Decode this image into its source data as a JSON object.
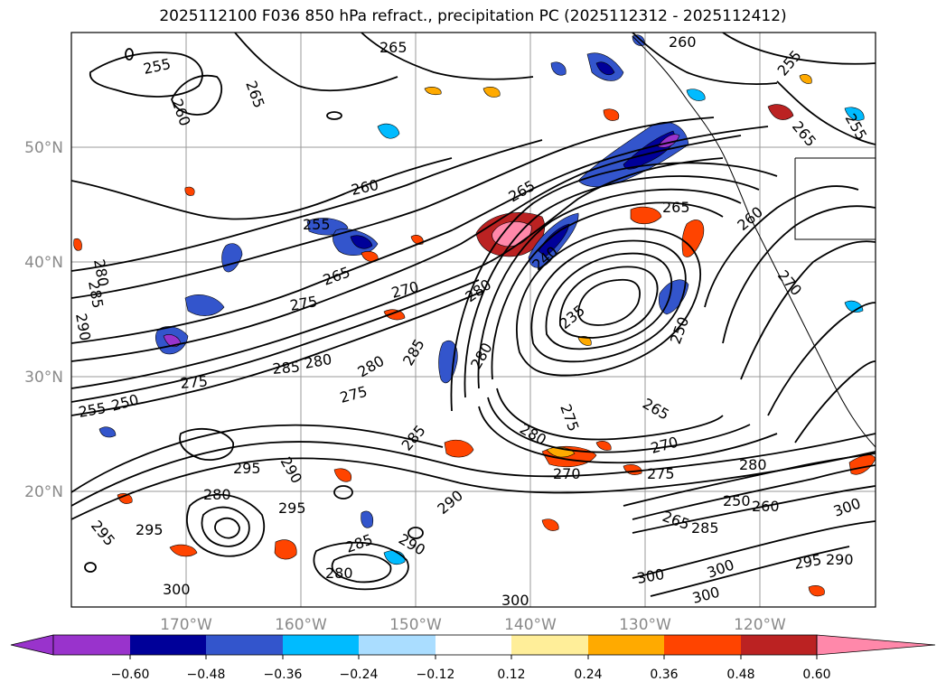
{
  "title": "2025112100 F036 850 hPa refract., precipitation PC (2025112312 - 2025112412)",
  "map": {
    "lat_labels": [
      "50°N",
      "40°N",
      "30°N",
      "20°N"
    ],
    "lon_labels": [
      "170°W",
      "160°W",
      "150°W",
      "140°W",
      "130°W",
      "120°W"
    ],
    "lat_values": [
      50,
      40,
      30,
      20
    ],
    "lon_values": [
      -170,
      -160,
      -150,
      -140,
      -130,
      -120
    ],
    "lat_range": [
      10,
      60
    ],
    "lon_range": [
      -180,
      -110
    ],
    "projection": "cylindrical",
    "contour_color": "#000000",
    "contour_labels": [
      "255",
      "265",
      "260",
      "255",
      "265",
      "260",
      "255",
      "265",
      "260",
      "260",
      "265",
      "255",
      "265",
      "280",
      "285",
      "290",
      "270",
      "275",
      "280",
      "265",
      "240",
      "235",
      "250",
      "275",
      "270",
      "280",
      "285",
      "280",
      "275",
      "275",
      "255",
      "250",
      "265",
      "270",
      "275",
      "280",
      "290",
      "285",
      "295",
      "300",
      "295",
      "300",
      "285",
      "280",
      "300",
      "290",
      "260",
      "250",
      "265",
      "270",
      "280",
      "300",
      "295",
      "290",
      "300",
      "280",
      "285",
      "295",
      "290",
      "295",
      "300",
      "285",
      "280"
    ]
  },
  "colorbar": {
    "ticks": [
      "−0.60",
      "−0.48",
      "−0.36",
      "−0.24",
      "−0.12",
      "0.12",
      "0.24",
      "0.36",
      "0.48",
      "0.60"
    ],
    "colors": [
      "#9933cc",
      "#000099",
      "#3355cc",
      "#00bbff",
      "#aaddff",
      "#ffffff",
      "#ffee99",
      "#ffaa00",
      "#ff4400",
      "#bb2222",
      "#ff88aa"
    ]
  }
}
